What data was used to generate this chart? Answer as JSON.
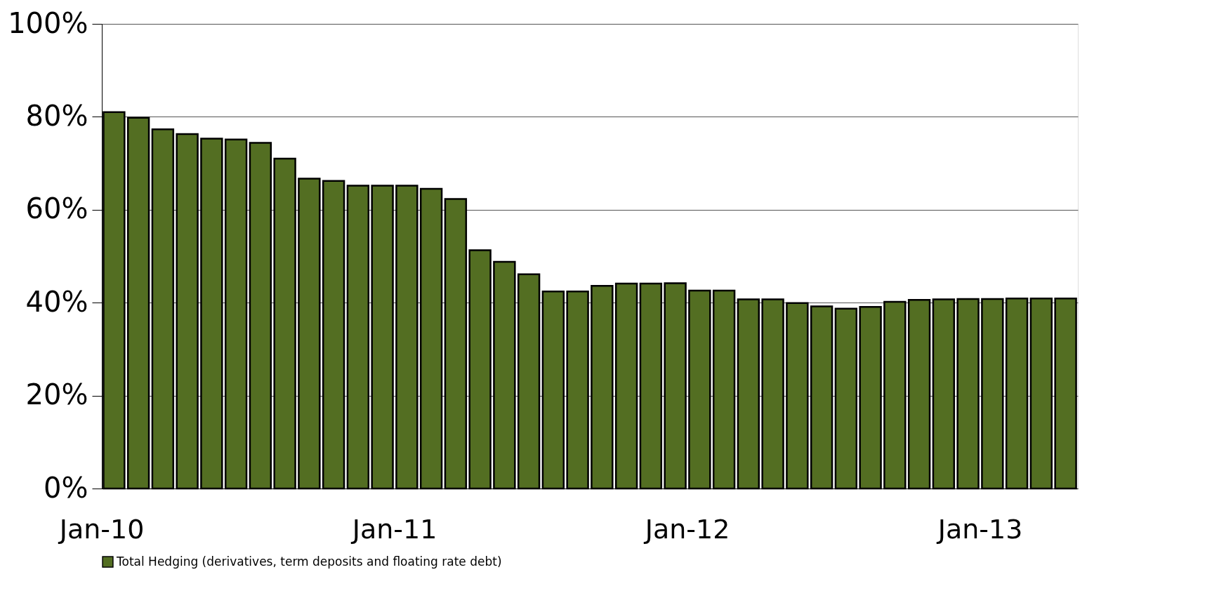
{
  "chart_data": {
    "type": "bar",
    "categories": [
      "Jan-10",
      null,
      null,
      null,
      null,
      null,
      null,
      null,
      null,
      null,
      null,
      null,
      "Jan-11",
      null,
      null,
      null,
      null,
      null,
      null,
      null,
      null,
      null,
      null,
      null,
      "Jan-12",
      null,
      null,
      null,
      null,
      null,
      null,
      null,
      null,
      null,
      null,
      null,
      "Jan-13",
      null,
      null,
      null
    ],
    "series": [
      {
        "name": "Total Hedging (derivatives, term deposits and floating rate debt)",
        "color": "#536e22",
        "values": [
          81.0,
          79.8,
          77.3,
          76.3,
          75.3,
          75.1,
          74.4,
          71.0,
          66.7,
          66.2,
          65.2,
          65.2,
          65.2,
          64.5,
          62.3,
          51.3,
          48.8,
          46.1,
          42.4,
          42.4,
          43.6,
          44.1,
          44.1,
          44.2,
          42.6,
          42.6,
          40.7,
          40.7,
          39.9,
          39.2,
          38.7,
          39.1,
          40.2,
          40.6,
          40.7,
          40.8,
          40.8,
          40.9,
          40.9,
          40.9
        ]
      }
    ],
    "ylim": [
      0,
      100
    ],
    "yticks": [
      {
        "value": 0,
        "label": "0%"
      },
      {
        "value": 20,
        "label": "20%"
      },
      {
        "value": 40,
        "label": "40%"
      },
      {
        "value": 60,
        "label": "60%"
      },
      {
        "value": 80,
        "label": "80%"
      },
      {
        "value": 100,
        "label": "100%"
      }
    ],
    "grid": "y",
    "legend": "bottom"
  }
}
